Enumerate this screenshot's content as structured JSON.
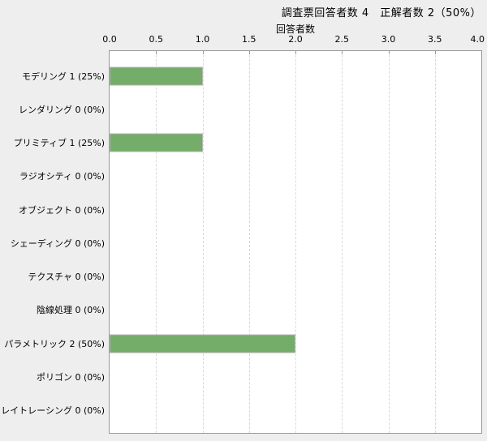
{
  "header": {
    "title": "調査票回答者数 4　正解者数 2（50%）"
  },
  "chart_data": {
    "type": "bar",
    "orientation": "horizontal",
    "title": "調査票回答者数 4　正解者数 2（50%）",
    "xlabel": "回答者数",
    "ylabel": "",
    "xlim": [
      0.0,
      4.0
    ],
    "xticks": [
      "0.0",
      "0.5",
      "1.0",
      "1.5",
      "2.0",
      "2.5",
      "3.0",
      "3.5",
      "4.0"
    ],
    "grid": "vertical-dashed",
    "legend": "none",
    "respondents_total": 4,
    "correct_total": 2,
    "correct_percent": "50%",
    "categories": [
      "モデリング",
      "レンダリング",
      "プリミティブ",
      "ラジオシティ",
      "オブジェクト",
      "シェーディング",
      "テクスチャ",
      "陰線処理",
      "パラメトリック",
      "ポリゴン",
      "レイトレーシング"
    ],
    "values": [
      1,
      0,
      1,
      0,
      0,
      0,
      0,
      0,
      2,
      0,
      0
    ],
    "percents": [
      "25%",
      "0%",
      "25%",
      "0%",
      "0%",
      "0%",
      "0%",
      "0%",
      "50%",
      "0%",
      "0%"
    ],
    "category_display_labels": [
      "モデリング 1 (25%)",
      "レンダリング 0 (0%)",
      "プリミティブ 1 (25%)",
      "ラジオシティ 0 (0%)",
      "オブジェクト 0 (0%)",
      "シェーディング 0 (0%)",
      "テクスチャ 0 (0%)",
      "陰線処理 0 (0%)",
      "パラメトリック 2 (50%)",
      "ポリゴン 0 (0%)",
      "レイトレーシング 0 (0%)"
    ]
  },
  "colors": {
    "background": "#eeeeee",
    "plot_background": "#ffffff",
    "plot_border": "#999999",
    "grid_line": "#d8d8d8",
    "bar_fill": "#73ad69",
    "bar_border": "#b5b5b5",
    "text": "#000000"
  }
}
